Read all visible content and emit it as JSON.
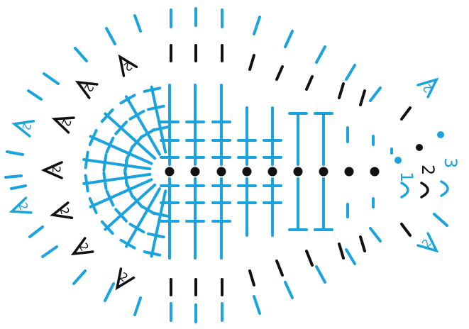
{
  "colors": {
    "blue": "#1aa3dc",
    "black": "#111111",
    "background": "#ffffff"
  },
  "symbols": {
    "chain": "chain-dot",
    "stitch": "double-crochet-symbol",
    "increase": "v-increase-symbol",
    "dash": "slip-dash"
  },
  "labels": {
    "increase": "2",
    "round_3": "3",
    "round_2": "2",
    "round_1": "1"
  }
}
